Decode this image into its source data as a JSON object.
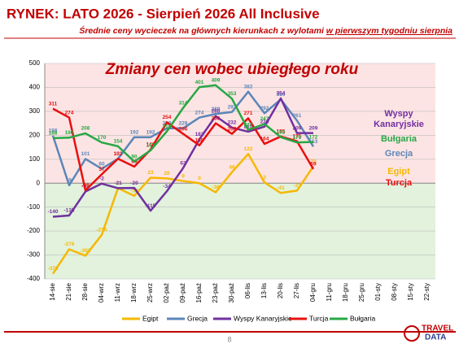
{
  "chart_data": {
    "type": "line",
    "header": "RYNEK: LATO 2026 - Sierpień 2026 All Inclusive",
    "subtitle": [
      "Średnie ceny wycieczek na głównych kierunkach  z wylotami",
      "w pierwszym tygodniu sierpnia"
    ],
    "title": "Zmiany cen wobec ubiegłego roku",
    "categories": [
      "14-sie",
      "21-sie",
      "28-sie",
      "04-wrz",
      "11-wrz",
      "18-wrz",
      "25-wrz",
      "02-paź",
      "09-paź",
      "16-paź",
      "23-paź",
      "30-paź",
      "06-lis",
      "13-lis",
      "20-lis",
      "27-lis",
      "04-gru",
      "11-gru",
      "18-gru",
      "25-gru",
      "01-sty",
      "08-sty",
      "15-sty",
      "22-sty"
    ],
    "series": [
      {
        "name": "Egipt",
        "color": "#f5b800",
        "values": [
          -378,
          -276,
          -303,
          -216,
          -21,
          -53,
          23,
          20,
          9,
          0,
          -38,
          46,
          122,
          3,
          -41,
          -31,
          70,
          null,
          null,
          null,
          null,
          null,
          null,
          null
        ]
      },
      {
        "name": "Grecja",
        "color": "#5b86b8",
        "values": [
          198,
          -9,
          101,
          60,
          102,
          192,
          192,
          229,
          229,
          274,
          289,
          297,
          382,
          292,
          350,
          261,
          153,
          null,
          null,
          null,
          null,
          null,
          null,
          null
        ]
      },
      {
        "name": "Wyspy Kanaryjskie",
        "color": "#7030a0",
        "values": [
          -140,
          -135,
          -35,
          -2,
          -21,
          -20,
          -115,
          -34,
          63,
          183,
          280,
          232,
          215,
          236,
          354,
          209,
          209,
          null,
          null,
          null,
          null,
          null,
          null,
          null
        ]
      },
      {
        "name": "Turcja",
        "color": "#e81010",
        "values": [
          311,
          274,
          -30,
          37,
          102,
          69,
          140,
          254,
          206,
          158,
          250,
          206,
          271,
          164,
          195,
          175,
          59,
          null,
          null,
          null,
          null,
          null,
          null,
          null
        ]
      },
      {
        "name": "Bułgaria",
        "color": "#27a744",
        "values": [
          188,
          190,
          208,
          170,
          154,
          90,
          137,
          216,
          314,
          401,
          409,
          353,
          222,
          247,
          192,
          170,
          172,
          null,
          null,
          null,
          null,
          null,
          null,
          null
        ]
      }
    ],
    "ylim": [
      -400,
      500
    ],
    "yticks": [
      -400,
      -300,
      -200,
      -100,
      0,
      100,
      200,
      300,
      400,
      500
    ],
    "grid": true,
    "page_number": "8",
    "logo": [
      "TRAVEL",
      "DATA"
    ]
  }
}
